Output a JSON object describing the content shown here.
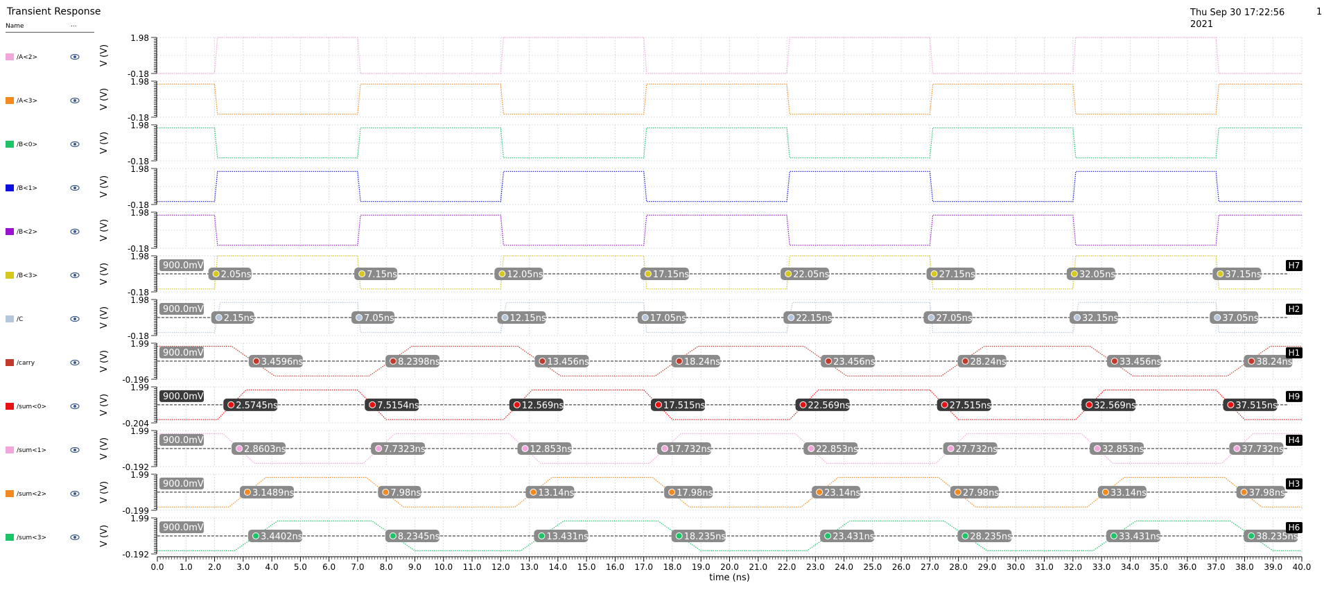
{
  "app": {
    "title": "Transient Response",
    "date": "Thu Sep 30 17:22:56\n2021",
    "page": "1"
  },
  "legend_header": {
    "name": "Name",
    "more": "..."
  },
  "chart_data": {
    "type": "line",
    "xlabel": "time (ns)",
    "xlim": [
      0.0,
      40.0
    ],
    "x_ticks": [
      "0.0",
      "1.0",
      "2.0",
      "3.0",
      "4.0",
      "5.0",
      "6.0",
      "7.0",
      "8.0",
      "9.0",
      "10.0",
      "11.0",
      "12.0",
      "13.0",
      "14.0",
      "15.0",
      "16.0",
      "17.0",
      "18.0",
      "19.0",
      "20.0",
      "21.0",
      "22.0",
      "23.0",
      "24.0",
      "25.0",
      "26.0",
      "27.0",
      "28.0",
      "29.0",
      "30.0",
      "31.0",
      "32.0",
      "33.0",
      "34.0",
      "35.0",
      "36.0",
      "37.0",
      "38.0",
      "39.0",
      "40.0"
    ],
    "grid": true,
    "panels": [
      {
        "name": "/A<2>",
        "color": "#f2a6dc",
        "ylabel": "V (V)",
        "ytop": "1.98",
        "ybot": "-0.18",
        "ylim": [
          -0.18,
          1.98
        ],
        "style": "dotted",
        "x": [
          0,
          2,
          2.1,
          7,
          7.1,
          12,
          12.1,
          17,
          17.1,
          22,
          22.1,
          27,
          27.1,
          32,
          32.1,
          37,
          37.1,
          40
        ],
        "y": [
          -0.18,
          -0.18,
          1.98,
          1.98,
          -0.18,
          -0.18,
          1.98,
          1.98,
          -0.18,
          -0.18,
          1.98,
          1.98,
          -0.18,
          -0.18,
          1.98,
          1.98,
          -0.18,
          -0.18
        ]
      },
      {
        "name": "/A<3>",
        "color": "#f48a1f",
        "ylabel": "V (V)",
        "ytop": "1.98",
        "ybot": "-0.18",
        "ylim": [
          -0.18,
          1.98
        ],
        "style": "dotted",
        "x": [
          0,
          2,
          2.1,
          7,
          7.1,
          12,
          12.1,
          17,
          17.1,
          22,
          22.1,
          27,
          27.1,
          32,
          32.1,
          37,
          37.1,
          40
        ],
        "y": [
          1.8,
          1.8,
          0,
          0,
          1.8,
          1.8,
          0,
          0,
          1.8,
          1.8,
          0,
          0,
          1.8,
          1.8,
          0,
          0,
          1.8,
          1.8
        ]
      },
      {
        "name": "/B<0>",
        "color": "#1cc466",
        "ylabel": "V (V)",
        "ytop": "1.98",
        "ybot": "-0.18",
        "ylim": [
          -0.18,
          1.98
        ],
        "style": "dotted",
        "x": [
          0,
          2,
          2.1,
          7,
          7.1,
          12,
          12.1,
          17,
          17.1,
          22,
          22.1,
          27,
          27.1,
          32,
          32.1,
          37,
          37.1,
          40
        ],
        "y": [
          1.8,
          1.8,
          0,
          0,
          1.8,
          1.8,
          0,
          0,
          1.8,
          1.8,
          0,
          0,
          1.8,
          1.8,
          0,
          0,
          1.8,
          1.8
        ]
      },
      {
        "name": "/B<1>",
        "color": "#0b0fe0",
        "ylabel": "V (V)",
        "ytop": "1.98",
        "ybot": "-0.18",
        "ylim": [
          -0.18,
          1.98
        ],
        "style": "dotted",
        "x": [
          0,
          2,
          2.1,
          7,
          7.1,
          12,
          12.1,
          17,
          17.1,
          22,
          22.1,
          27,
          27.1,
          32,
          32.1,
          37,
          37.1,
          40
        ],
        "y": [
          0,
          0,
          1.8,
          1.8,
          0,
          0,
          1.8,
          1.8,
          0,
          0,
          1.8,
          1.8,
          0,
          0,
          1.8,
          1.8,
          0,
          0
        ]
      },
      {
        "name": "/B<2>",
        "color": "#9a12d0",
        "ylabel": "V (V)",
        "ytop": "1.98",
        "ybot": "-0.18",
        "ylim": [
          -0.18,
          1.98
        ],
        "style": "dotted",
        "x": [
          0,
          2,
          2.1,
          7,
          7.1,
          12,
          12.1,
          17,
          17.1,
          22,
          22.1,
          27,
          27.1,
          32,
          32.1,
          37,
          37.1,
          40
        ],
        "y": [
          1.8,
          1.8,
          0,
          0,
          1.8,
          1.8,
          0,
          0,
          1.8,
          1.8,
          0,
          0,
          1.8,
          1.8,
          0,
          0,
          1.8,
          1.8
        ]
      },
      {
        "name": "/B<3>",
        "color": "#d6c81c",
        "ylabel": "V (V)",
        "ytop": "1.98",
        "ybot": "-0.18",
        "ylim": [
          -0.18,
          1.98
        ],
        "style": "dotted",
        "x": [
          0,
          2,
          2.1,
          7,
          7.1,
          12,
          12.1,
          17,
          17.1,
          22,
          22.1,
          27,
          27.1,
          32,
          32.1,
          37,
          37.1,
          40
        ],
        "y": [
          0,
          0,
          1.98,
          1.98,
          0,
          0,
          1.98,
          1.98,
          0,
          0,
          1.98,
          1.98,
          0,
          0,
          1.98,
          1.98,
          0,
          0
        ],
        "marker_label": "H7",
        "level": 0.9,
        "level_label": "900.0mV",
        "dark": false,
        "crossings": [
          2.05,
          7.15,
          12.05,
          17.15,
          22.05,
          27.15,
          32.05,
          37.15
        ],
        "labels": [
          "2.05ns",
          "7.15ns",
          "12.05ns",
          "17.15ns",
          "22.05ns",
          "27.15ns",
          "32.05ns",
          "37.15ns"
        ]
      },
      {
        "name": "/C",
        "color": "#b5c6da",
        "ylabel": "V (V)",
        "ytop": "1.98",
        "ybot": "-0.18",
        "ylim": [
          -0.18,
          1.98
        ],
        "style": "dotted",
        "x": [
          0,
          2,
          2.2,
          7,
          7.1,
          12,
          12.2,
          17,
          17.1,
          22,
          22.2,
          27,
          27.1,
          32,
          32.2,
          37,
          37.1,
          40
        ],
        "y": [
          0,
          0,
          1.8,
          1.8,
          0,
          0,
          1.8,
          1.8,
          0,
          0,
          1.8,
          1.8,
          0,
          0,
          1.8,
          1.8,
          0,
          0
        ],
        "marker_label": "H2",
        "level": 0.9,
        "level_label": "900.0mV",
        "dark": false,
        "crossings": [
          2.15,
          7.05,
          12.15,
          17.05,
          22.15,
          27.05,
          32.15,
          37.05
        ],
        "labels": [
          "2.15ns",
          "7.05ns",
          "12.15ns",
          "17.05ns",
          "22.15ns",
          "27.05ns",
          "32.15ns",
          "37.05ns"
        ]
      },
      {
        "name": "/carry",
        "color": "#c23a2a",
        "ylabel": "V (V)",
        "ytop": "1.99",
        "ybot": "-0.196",
        "ylim": [
          -0.196,
          1.99
        ],
        "style": "dotted",
        "x": [
          0,
          2.6,
          4.1,
          7.4,
          8.9,
          12.6,
          14.1,
          17.4,
          18.9,
          22.6,
          24.1,
          27.4,
          28.9,
          32.6,
          34.1,
          37.4,
          38.9,
          40
        ],
        "y": [
          1.8,
          1.8,
          0,
          0,
          1.8,
          1.8,
          0,
          0,
          1.8,
          1.8,
          0,
          0,
          1.8,
          1.8,
          0,
          0,
          1.8,
          1.8
        ],
        "marker_label": "H1",
        "level": 0.9,
        "level_label": "900.0mV",
        "dark": false,
        "crossings": [
          3.4596,
          8.2398,
          13.456,
          18.24,
          23.456,
          28.24,
          33.456,
          38.24
        ],
        "labels": [
          "3.4596ns",
          "8.2398ns",
          "13.456ns",
          "18.24ns",
          "23.456ns",
          "28.24ns",
          "33.456ns",
          "38.24ns"
        ]
      },
      {
        "name": "/sum<0>",
        "color": "#e81010",
        "ylabel": "V (V)",
        "ytop": "1.99",
        "ybot": "-0.204",
        "ylim": [
          -0.204,
          1.99
        ],
        "style": "dotted",
        "x": [
          0,
          2.1,
          3.1,
          7.0,
          8.0,
          12.1,
          13.1,
          17.0,
          18.0,
          22.1,
          23.1,
          27.0,
          28.0,
          32.1,
          33.1,
          37.0,
          38.0,
          40
        ],
        "y": [
          0,
          0,
          1.8,
          1.8,
          0,
          0,
          1.8,
          1.8,
          0,
          0,
          1.8,
          1.8,
          0,
          0,
          1.8,
          1.8,
          0,
          0
        ],
        "marker_label": "H9",
        "level": 0.9,
        "level_label": "900.0mV",
        "dark": true,
        "crossings": [
          2.5745,
          7.5154,
          12.569,
          17.515,
          22.569,
          27.515,
          32.569,
          37.515
        ],
        "labels": [
          "2.5745ns",
          "7.5154ns",
          "12.569ns",
          "17.515ns",
          "22.569ns",
          "27.515ns",
          "32.569ns",
          "37.515ns"
        ]
      },
      {
        "name": "/sum<1>",
        "color": "#f2a6dc",
        "ylabel": "V (V)",
        "ytop": "1.99",
        "ybot": "-0.192",
        "ylim": [
          -0.192,
          1.99
        ],
        "style": "dotted",
        "x": [
          0,
          2.3,
          3.4,
          7.2,
          8.3,
          12.3,
          13.4,
          17.2,
          18.3,
          22.3,
          23.4,
          27.2,
          28.3,
          32.3,
          33.4,
          37.2,
          38.3,
          40
        ],
        "y": [
          1.8,
          1.8,
          0,
          0,
          1.8,
          1.8,
          0,
          0,
          1.8,
          1.8,
          0,
          0,
          1.8,
          1.8,
          0,
          0,
          1.8,
          1.8
        ],
        "marker_label": "H4",
        "level": 0.9,
        "level_label": "900.0mV",
        "dark": false,
        "crossings": [
          2.8603,
          7.7323,
          12.853,
          17.732,
          22.853,
          27.732,
          32.853,
          37.732
        ],
        "labels": [
          "2.8603ns",
          "7.7323ns",
          "12.853ns",
          "17.732ns",
          "22.853ns",
          "27.732ns",
          "32.853ns",
          "37.732ns"
        ]
      },
      {
        "name": "/sum<2>",
        "color": "#f48a1f",
        "ylabel": "V (V)",
        "ytop": "1.99",
        "ybot": "-0.199",
        "ylim": [
          -0.199,
          1.99
        ],
        "style": "dotted",
        "x": [
          0,
          2.5,
          3.8,
          7.3,
          8.6,
          12.5,
          13.8,
          17.3,
          18.6,
          22.5,
          23.8,
          27.3,
          28.6,
          32.5,
          33.8,
          37.3,
          38.6,
          40
        ],
        "y": [
          0,
          0,
          1.8,
          1.8,
          0,
          0,
          1.8,
          1.8,
          0,
          0,
          1.8,
          1.8,
          0,
          0,
          1.8,
          1.8,
          0,
          0
        ],
        "marker_label": "H3",
        "level": 0.9,
        "level_label": "900.0mV",
        "dark": false,
        "crossings": [
          3.1489,
          7.98,
          13.14,
          17.98,
          23.14,
          27.98,
          33.14,
          37.98
        ],
        "labels": [
          "3.1489ns",
          "7.98ns",
          "13.14ns",
          "17.98ns",
          "23.14ns",
          "27.98ns",
          "33.14ns",
          "37.98ns"
        ]
      },
      {
        "name": "/sum<3>",
        "color": "#1cc466",
        "ylabel": "V (V)",
        "ytop": "1.99",
        "ybot": "-0.192",
        "ylim": [
          -0.192,
          1.99
        ],
        "style": "dotted",
        "x": [
          0,
          2.7,
          4.2,
          7.5,
          9.0,
          12.7,
          14.2,
          17.5,
          19.0,
          22.7,
          24.2,
          27.5,
          29.0,
          32.7,
          34.2,
          37.5,
          39.0,
          40
        ],
        "y": [
          0,
          0,
          1.8,
          1.8,
          0,
          0,
          1.8,
          1.8,
          0,
          0,
          1.8,
          1.8,
          0,
          0,
          1.8,
          1.8,
          0,
          0
        ],
        "marker_label": "H6",
        "level": 0.9,
        "level_label": "900.0mV",
        "dark": false,
        "crossings": [
          3.4402,
          8.2345,
          13.431,
          18.235,
          23.431,
          28.235,
          33.431,
          38.235
        ],
        "labels": [
          "3.4402ns",
          "8.2345ns",
          "13.431ns",
          "18.235ns",
          "23.431ns",
          "28.235ns",
          "33.431ns",
          "38.235ns"
        ]
      }
    ]
  }
}
